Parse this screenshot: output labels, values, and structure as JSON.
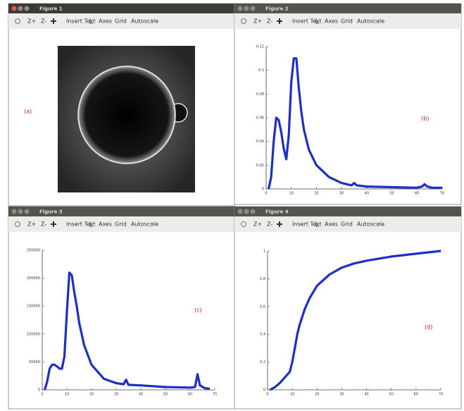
{
  "windows": [
    {
      "title": "Figure 1",
      "toolbar": [
        "Z+",
        "Z-",
        "Insert Text",
        "Axes",
        "Grid",
        "Autoscale"
      ],
      "label": "(a)"
    },
    {
      "title": "Figure 2",
      "toolbar": [
        "Z+",
        "Z-",
        "Insert Text",
        "Axes",
        "Grid",
        "Autoscale"
      ]
    },
    {
      "title": "Figure 3",
      "toolbar": [
        "Z+",
        "Z-",
        "Insert Text",
        "Axes",
        "Grid",
        "Autoscale"
      ]
    },
    {
      "title": "Figure 4",
      "toolbar": [
        "Z+",
        "Z-",
        "Insert Text",
        "Axes",
        "Grid",
        "Autoscale"
      ]
    }
  ],
  "chart_data": [
    {
      "type": "line",
      "annotation": "(b)",
      "color": "#1c2fc4",
      "x": [
        1,
        2,
        3,
        4,
        5,
        6,
        7,
        8,
        9,
        10,
        11,
        12,
        13,
        14,
        15,
        17,
        20,
        25,
        30,
        34,
        35,
        36,
        40,
        50,
        60,
        62,
        63,
        64,
        66,
        70
      ],
      "values": [
        0,
        0.01,
        0.04,
        0.06,
        0.058,
        0.048,
        0.034,
        0.025,
        0.045,
        0.09,
        0.11,
        0.11,
        0.085,
        0.065,
        0.05,
        0.033,
        0.02,
        0.01,
        0.005,
        0.003,
        0.005,
        0.003,
        0.002,
        0.0015,
        0.001,
        0.002,
        0.004,
        0.002,
        0.001,
        0.001
      ],
      "xlim": [
        0,
        70
      ],
      "ylim": [
        0,
        0.12
      ],
      "xticks": [
        0,
        10,
        20,
        30,
        40,
        50,
        60,
        70
      ],
      "yticks": [
        0,
        0.02,
        0.04,
        0.06,
        0.08,
        0.1,
        0.12
      ]
    },
    {
      "type": "line",
      "annotation": "(c)",
      "color": "#1c2fc4",
      "x": [
        1,
        2,
        3,
        4,
        5,
        6,
        7,
        8,
        9,
        10,
        11,
        12,
        13,
        14,
        15,
        17,
        20,
        25,
        30,
        33,
        34,
        35,
        40,
        50,
        60,
        62,
        63,
        64,
        66,
        68
      ],
      "values": [
        0,
        15000,
        38000,
        45000,
        45000,
        42000,
        38000,
        38000,
        60000,
        140000,
        210000,
        205000,
        175000,
        150000,
        120000,
        80000,
        45000,
        20000,
        12000,
        10000,
        18000,
        9000,
        8000,
        5000,
        4000,
        5000,
        28000,
        8000,
        3000,
        2000
      ],
      "xlim": [
        0,
        70
      ],
      "ylim": [
        0,
        250000
      ],
      "xticks": [
        0,
        10,
        20,
        30,
        40,
        50,
        60,
        70
      ],
      "yticks": [
        0,
        50000,
        100000,
        150000,
        200000,
        250000
      ]
    },
    {
      "type": "line",
      "annotation": "(d)",
      "color": "#1c2fc4",
      "x": [
        1,
        3,
        5,
        7,
        9,
        10,
        11,
        12,
        13,
        15,
        17,
        20,
        25,
        30,
        35,
        40,
        50,
        60,
        70
      ],
      "values": [
        0,
        0.02,
        0.05,
        0.09,
        0.13,
        0.2,
        0.3,
        0.4,
        0.47,
        0.58,
        0.66,
        0.75,
        0.83,
        0.88,
        0.91,
        0.93,
        0.96,
        0.98,
        1
      ],
      "xlim": [
        0,
        70
      ],
      "ylim": [
        0,
        1
      ],
      "xticks": [
        0,
        10,
        20,
        30,
        40,
        50,
        60,
        70
      ],
      "yticks": [
        0,
        0.2,
        0.4,
        0.6,
        0.8,
        1
      ]
    }
  ]
}
